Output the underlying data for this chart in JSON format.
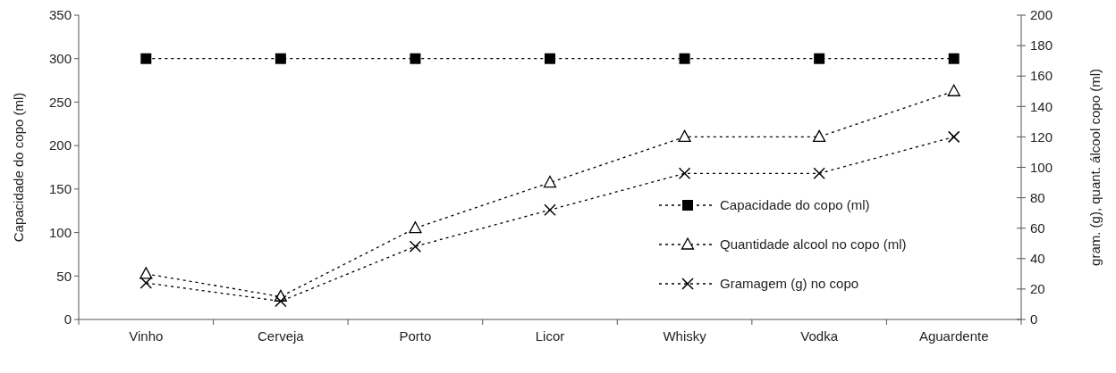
{
  "chart_data": {
    "type": "line",
    "ylabel": "Capacidade do copo (ml)",
    "y2label": "gram. (g), quant. álcool copo (ml)",
    "categories": [
      "Vinho",
      "Cerveja",
      "Porto",
      "Licor",
      "Whisky",
      "Vodka",
      "Aguardente"
    ],
    "ylim": [
      0,
      350
    ],
    "yticks": [
      0,
      50,
      100,
      150,
      200,
      250,
      300,
      350
    ],
    "y2lim": [
      0,
      200
    ],
    "y2ticks": [
      0,
      20,
      40,
      60,
      80,
      100,
      120,
      140,
      160,
      180,
      200
    ],
    "series": [
      {
        "name": "Capacidade do copo (ml)",
        "color": "#000000",
        "marker": "square",
        "values": [
          300,
          300,
          300,
          300,
          300,
          300,
          300
        ]
      },
      {
        "name": "Quantidade alcool no copo (ml)",
        "color": "#000000",
        "marker": "triangle",
        "axis": "y2",
        "values": [
          30,
          15,
          60,
          90,
          120,
          120,
          150
        ]
      },
      {
        "name": "Gramagem (g) no copo",
        "color": "#000000",
        "marker": "cross",
        "axis": "y2",
        "values": [
          24,
          12,
          48,
          72,
          96,
          96,
          120
        ]
      }
    ],
    "line_style": "dotted",
    "legend": "bottom right",
    "grid": false
  }
}
